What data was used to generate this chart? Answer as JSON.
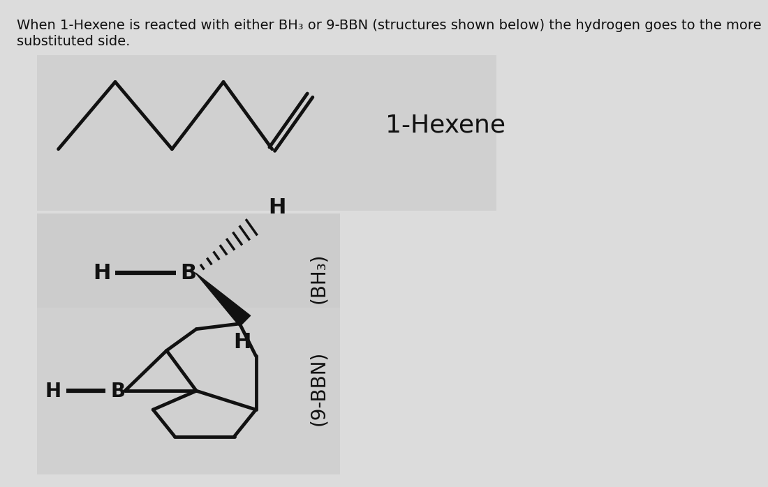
{
  "bg_color": "#dcdcdc",
  "panel1_bg": "#d0d0d0",
  "panel2_bg": "#cccccc",
  "panel3_bg": "#d0d0d0",
  "text_color": "#111111",
  "title_line1": "When 1-Hexene is reacted with either BH₃ or 9-BBN (structures shown below) the hydrogen goes to the more",
  "title_line2": "substituted side.",
  "hexene_label": "1-Hexene",
  "bh3_label": "(BH₃)",
  "bbn_label": "(9-BBN)"
}
